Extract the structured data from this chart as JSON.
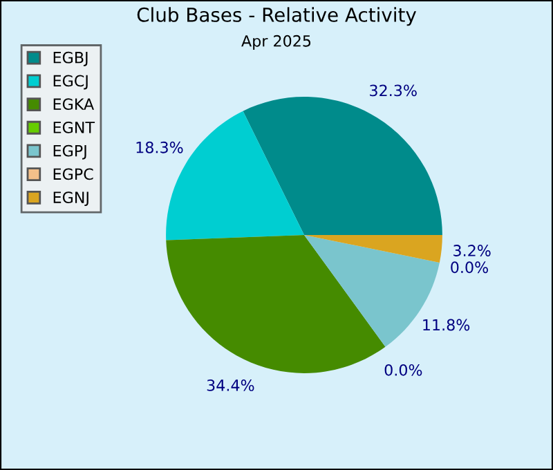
{
  "chart_data": {
    "type": "pie",
    "title": "Club Bases - Relative Activity",
    "subtitle": "Apr 2025",
    "categories": [
      "EGBJ",
      "EGCJ",
      "EGKA",
      "EGNT",
      "EGPJ",
      "EGPC",
      "EGNJ"
    ],
    "values": [
      32.3,
      18.3,
      34.4,
      0.0,
      11.8,
      0.0,
      3.2
    ],
    "colors": [
      "#008b8b",
      "#00ced1",
      "#458b00",
      "#66cd00",
      "#7ac5cd",
      "#f4c08a",
      "#daa520"
    ],
    "value_labels": [
      "32.3%",
      "18.3%",
      "34.4%",
      "0.0%",
      "11.8%",
      "0.0%",
      "3.2%"
    ],
    "legend": "top left"
  }
}
